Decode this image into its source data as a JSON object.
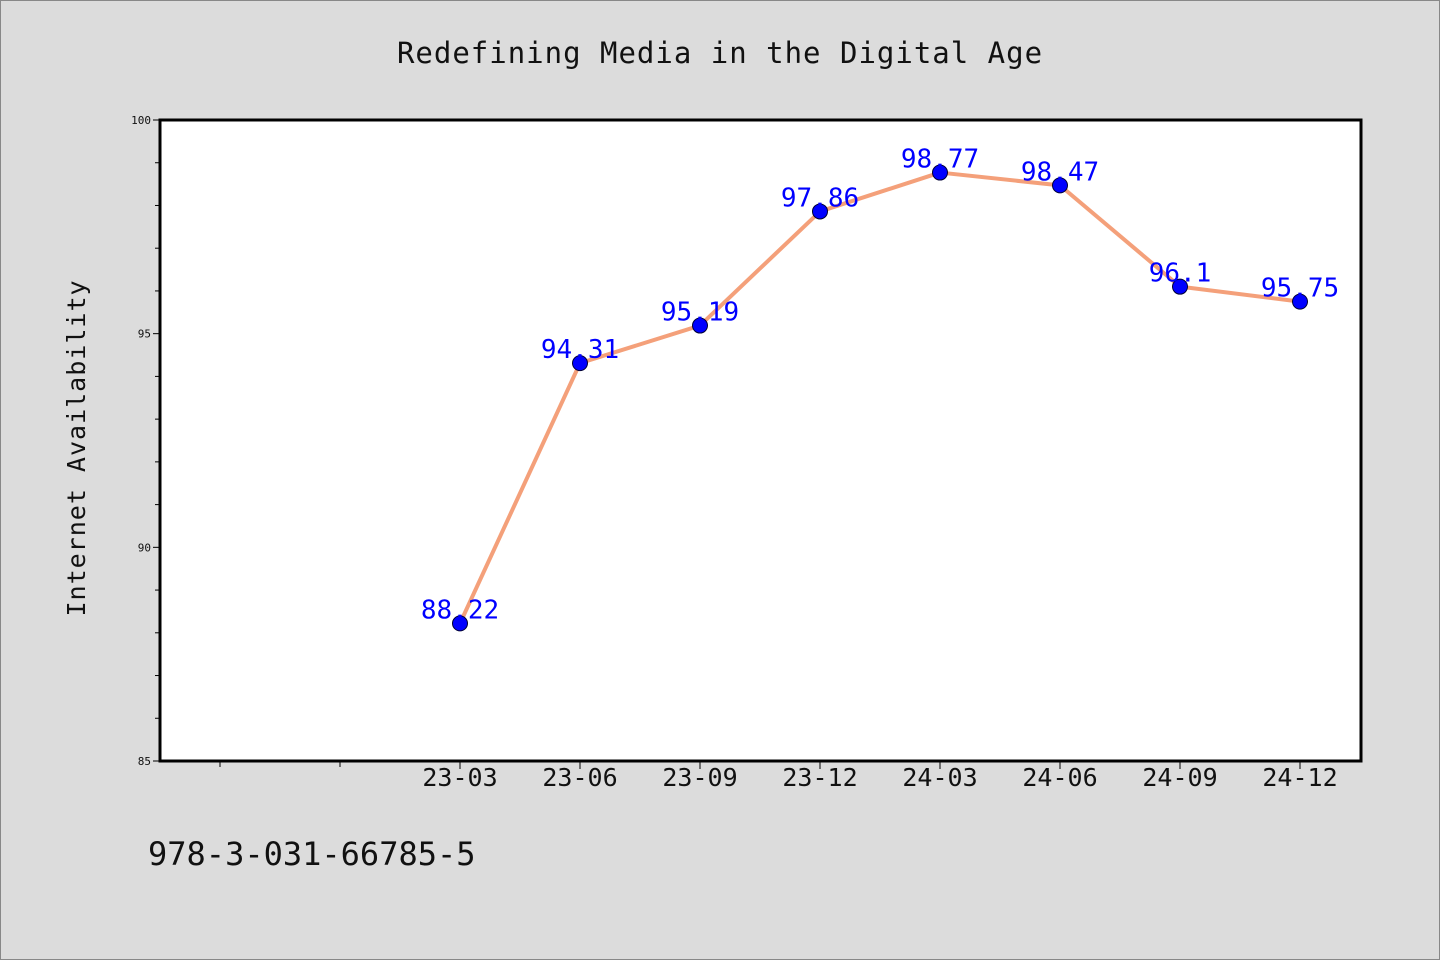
{
  "chart_data": {
    "type": "line",
    "title": "Redefining Media in the Digital Age",
    "xlabel": "",
    "ylabel": "Internet Availability",
    "x": [
      "23-03",
      "23-06",
      "23-09",
      "23-12",
      "24-03",
      "24-06",
      "24-09",
      "24-12"
    ],
    "series": [
      {
        "values": [
          88.22,
          94.31,
          95.19,
          97.86,
          98.77,
          98.47,
          96.1,
          95.75
        ]
      }
    ],
    "data_labels": [
      "88.22",
      "94.31",
      "95.19",
      "97.86",
      "98.77",
      "98.47",
      "96.1",
      "95.75"
    ],
    "ylim": [
      85,
      100
    ],
    "yticks": [
      "85",
      "90",
      "95",
      "100"
    ],
    "grid": false,
    "line_color": "#f4a07a",
    "marker_color": "#0000ff",
    "label_color": "#0000ff"
  },
  "footer": {
    "isbn": "978-3-031-66785-5"
  }
}
